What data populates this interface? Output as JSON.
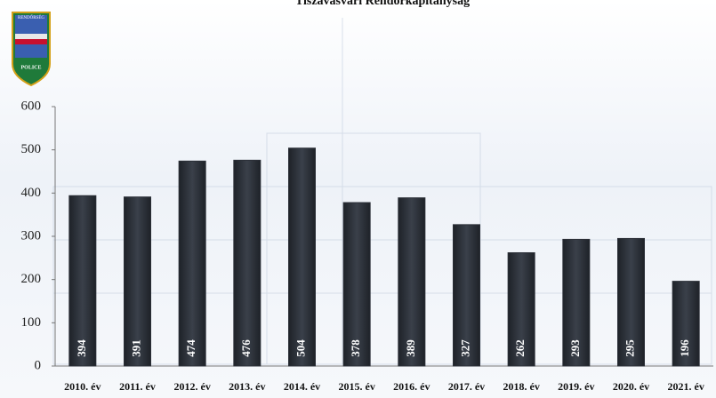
{
  "logo": {
    "top": "RENDŐRSÉG",
    "bottom": "POLICE"
  },
  "chart_data": {
    "type": "bar",
    "title": "Tiszavasvári Rendőrkapitányság",
    "categories": [
      "2010. év",
      "2011. év",
      "2012. év",
      "2013. év",
      "2014. év",
      "2015. év",
      "2016. év",
      "2017. év",
      "2018. év",
      "2019. év",
      "2020. év",
      "2021. év"
    ],
    "values": [
      394,
      391,
      474,
      476,
      504,
      378,
      389,
      327,
      262,
      293,
      295,
      196
    ],
    "color": "#2b2f37",
    "ylim": [
      0,
      600
    ],
    "yticks": [
      0,
      100,
      200,
      300,
      400,
      500,
      600
    ]
  }
}
